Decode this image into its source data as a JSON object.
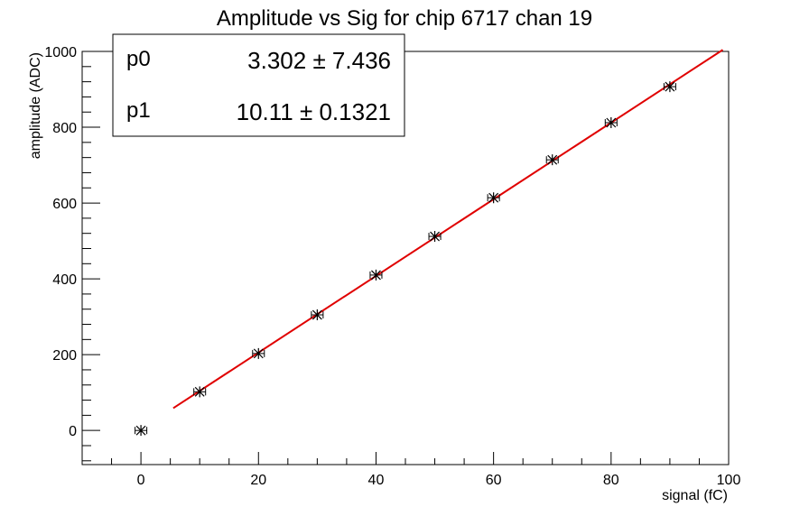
{
  "chart_data": {
    "type": "scatter",
    "title": "Amplitude vs Sig for chip 6717 chan 19",
    "xlabel": "signal (fC)",
    "ylabel": "amplitude (ADC)",
    "xlim": [
      -10,
      100
    ],
    "ylim": [
      -90,
      1000
    ],
    "xticks": [
      0,
      20,
      40,
      60,
      80,
      100
    ],
    "yticks": [
      0,
      200,
      400,
      600,
      800,
      1000
    ],
    "grid": false,
    "series": [
      {
        "marker": "asterisk",
        "error_bars": "horizontal",
        "color": "#000000",
        "x": [
          0,
          10,
          20,
          30,
          40,
          50,
          60,
          70,
          80,
          90
        ],
        "y": [
          0,
          102,
          203,
          305,
          410,
          512,
          614,
          714,
          812,
          907
        ],
        "xerr": [
          1,
          1,
          1,
          1,
          1,
          1,
          1,
          1,
          1,
          1
        ]
      }
    ],
    "fit": {
      "color": "#e00000",
      "x_range": [
        5.5,
        99
      ],
      "p0": 3.302,
      "p1": 10.11
    },
    "stats_box": {
      "placement": "top-left",
      "rows": [
        {
          "name": "p0",
          "value": "3.302 ± 7.436"
        },
        {
          "name": "p1",
          "value": "10.11 ± 0.1321"
        }
      ]
    }
  }
}
